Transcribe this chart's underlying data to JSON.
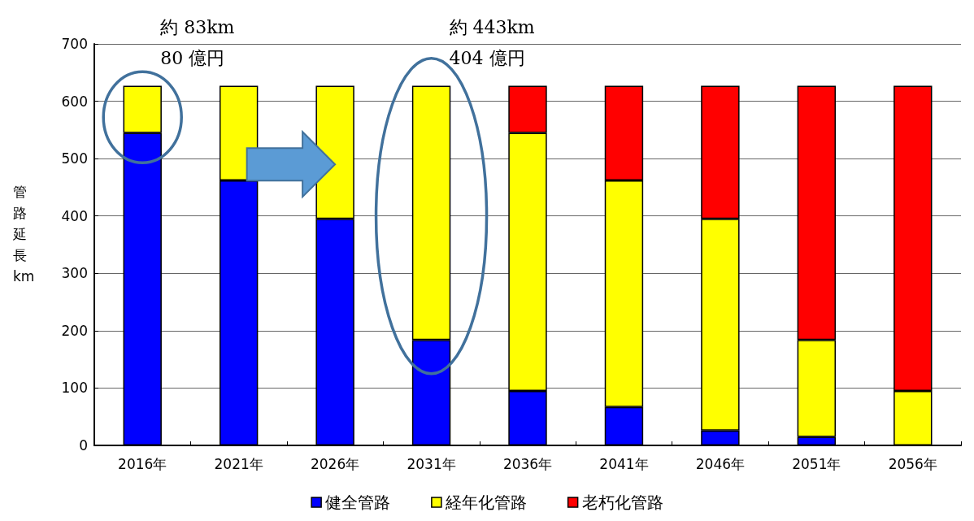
{
  "chart_data": {
    "type": "bar",
    "stacked": true,
    "ylabel": "管路延長km",
    "categories": [
      "2016年",
      "2021年",
      "2026年",
      "2031年",
      "2036年",
      "2041年",
      "2046年",
      "2051年",
      "2056年"
    ],
    "series": [
      {
        "name": "健全管路",
        "color": "#0000ff",
        "values": [
          545,
          462,
          395,
          184,
          95,
          67,
          26,
          15,
          null
        ]
      },
      {
        "name": "経年化管路",
        "color": "#ffff00",
        "values": [
          82,
          165,
          232,
          443,
          450,
          395,
          369,
          169,
          95
        ]
      },
      {
        "name": "老朽化管路",
        "color": "#ff0000",
        "values": [
          null,
          null,
          null,
          null,
          82,
          165,
          232,
          443,
          532
        ]
      }
    ],
    "ylim": [
      0,
      700
    ],
    "yticks": [
      0,
      100,
      200,
      300,
      400,
      500,
      600,
      700
    ],
    "grid": "y",
    "legend": "bottom",
    "annotations": [
      "約 83km",
      "80 億円",
      "約 443km",
      "404 億円"
    ]
  }
}
